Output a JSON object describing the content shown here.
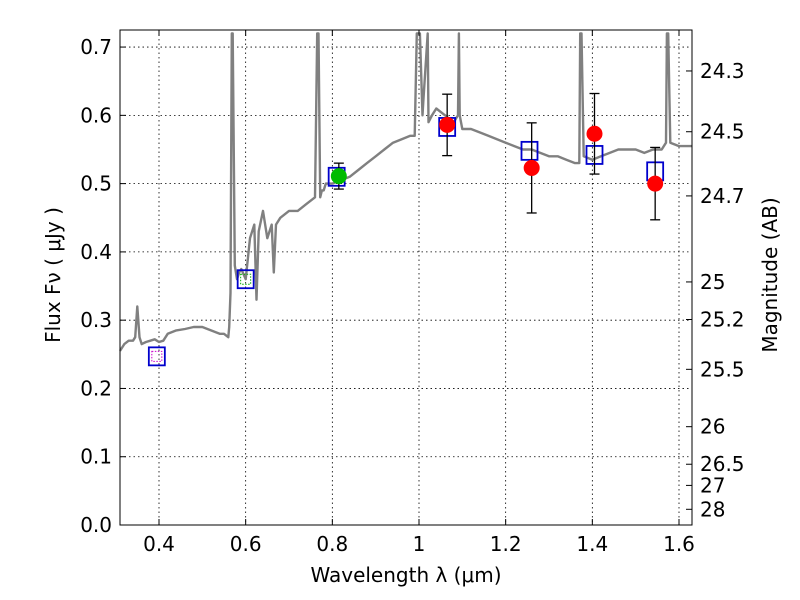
{
  "chart_data": {
    "type": "scatter",
    "title": "",
    "xlabel": "Wavelength  λ (μm)",
    "ylabel": "Flux  Fν  ( μJy )",
    "y2label": "Magnitude (AB)",
    "xlim": [
      0.31,
      1.63
    ],
    "ylim": [
      0.0,
      0.725
    ],
    "grid": true,
    "x_ticks": [
      "0.4",
      "0.6",
      "0.8",
      "1",
      "1.2",
      "1.4",
      "1.6"
    ],
    "y_ticks": [
      "0.0",
      "0.1",
      "0.2",
      "0.3",
      "0.4",
      "0.5",
      "0.6",
      "0.7"
    ],
    "y2_ticks": [
      {
        "label": "24.3",
        "flux": 0.665
      },
      {
        "label": "24.5",
        "flux": 0.576
      },
      {
        "label": "24.7",
        "flux": 0.482
      },
      {
        "label": "25",
        "flux": 0.356
      },
      {
        "label": "25.2",
        "flux": 0.301
      },
      {
        "label": "25.5",
        "flux": 0.228
      },
      {
        "label": "26",
        "flux": 0.144
      },
      {
        "label": "26.5",
        "flux": 0.089
      },
      {
        "label": "27",
        "flux": 0.058
      },
      {
        "label": "28",
        "flux": 0.023
      }
    ],
    "series": [
      {
        "name": "model_spectrum",
        "kind": "line",
        "color": "#808080",
        "x": [
          0.31,
          0.32,
          0.33,
          0.34,
          0.345,
          0.35,
          0.355,
          0.36,
          0.37,
          0.38,
          0.39,
          0.4,
          0.41,
          0.42,
          0.44,
          0.46,
          0.48,
          0.5,
          0.52,
          0.54,
          0.55,
          0.56,
          0.562,
          0.565,
          0.568,
          0.57,
          0.575,
          0.58,
          0.585,
          0.59,
          0.6,
          0.61,
          0.62,
          0.625,
          0.63,
          0.64,
          0.65,
          0.66,
          0.665,
          0.67,
          0.68,
          0.7,
          0.72,
          0.74,
          0.76,
          0.765,
          0.768,
          0.772,
          0.776,
          0.78,
          0.785,
          0.79,
          0.8,
          0.82,
          0.84,
          0.86,
          0.88,
          0.9,
          0.92,
          0.94,
          0.96,
          0.98,
          0.99,
          0.995,
          1.0,
          1.002,
          1.008,
          1.01,
          1.02,
          1.022,
          1.03,
          1.04,
          1.06,
          1.08,
          1.09,
          1.092,
          1.094,
          1.1,
          1.12,
          1.14,
          1.16,
          1.18,
          1.2,
          1.22,
          1.24,
          1.26,
          1.28,
          1.3,
          1.32,
          1.34,
          1.36,
          1.37,
          1.372,
          1.375,
          1.38,
          1.4,
          1.42,
          1.44,
          1.46,
          1.48,
          1.5,
          1.52,
          1.54,
          1.56,
          1.57,
          1.572,
          1.575,
          1.58,
          1.6,
          1.62,
          1.63
        ],
        "y": [
          0.255,
          0.265,
          0.27,
          0.27,
          0.275,
          0.32,
          0.275,
          0.265,
          0.268,
          0.27,
          0.272,
          0.268,
          0.27,
          0.28,
          0.285,
          0.287,
          0.29,
          0.29,
          0.285,
          0.28,
          0.28,
          0.275,
          0.29,
          0.34,
          0.72,
          0.72,
          0.38,
          0.36,
          0.37,
          0.375,
          0.36,
          0.42,
          0.44,
          0.33,
          0.43,
          0.46,
          0.42,
          0.44,
          0.37,
          0.44,
          0.45,
          0.46,
          0.46,
          0.47,
          0.48,
          0.72,
          0.72,
          0.48,
          0.49,
          0.49,
          0.5,
          0.5,
          0.5,
          0.505,
          0.51,
          0.52,
          0.53,
          0.54,
          0.55,
          0.56,
          0.565,
          0.57,
          0.57,
          0.72,
          0.72,
          0.72,
          0.6,
          0.62,
          0.72,
          0.59,
          0.6,
          0.61,
          0.6,
          0.59,
          0.6,
          0.72,
          0.6,
          0.58,
          0.58,
          0.575,
          0.57,
          0.565,
          0.56,
          0.555,
          0.55,
          0.55,
          0.545,
          0.54,
          0.54,
          0.535,
          0.53,
          0.53,
          0.72,
          0.72,
          0.54,
          0.535,
          0.54,
          0.545,
          0.55,
          0.55,
          0.55,
          0.545,
          0.55,
          0.55,
          0.56,
          0.72,
          0.72,
          0.56,
          0.555,
          0.555,
          0.555
        ]
      },
      {
        "name": "model_synthetic_photometry",
        "kind": "open_square",
        "color": "#0000cc",
        "x": [
          0.395,
          0.6,
          0.81,
          1.065,
          1.255,
          1.405,
          1.545
        ],
        "y": [
          0.247,
          0.36,
          0.51,
          0.583,
          0.548,
          0.542,
          0.518
        ]
      },
      {
        "name": "observed_detections",
        "kind": "filled_circle",
        "color": "#ff0000",
        "x": [
          1.065,
          1.26,
          1.405,
          1.545
        ],
        "y": [
          0.586,
          0.523,
          0.573,
          0.5
        ],
        "yerr": [
          0.045,
          0.066,
          0.059,
          0.053
        ]
      },
      {
        "name": "observed_detection_green",
        "kind": "filled_circle",
        "color": "#00bb00",
        "x": [
          0.815
        ],
        "y": [
          0.511
        ],
        "yerr": [
          0.019
        ]
      },
      {
        "name": "band_markers",
        "kind": "small_square",
        "colors": [
          "#cc00cc",
          "#00aa00"
        ],
        "x": [
          0.395,
          0.6
        ],
        "y": [
          0.247,
          0.36
        ]
      }
    ]
  }
}
